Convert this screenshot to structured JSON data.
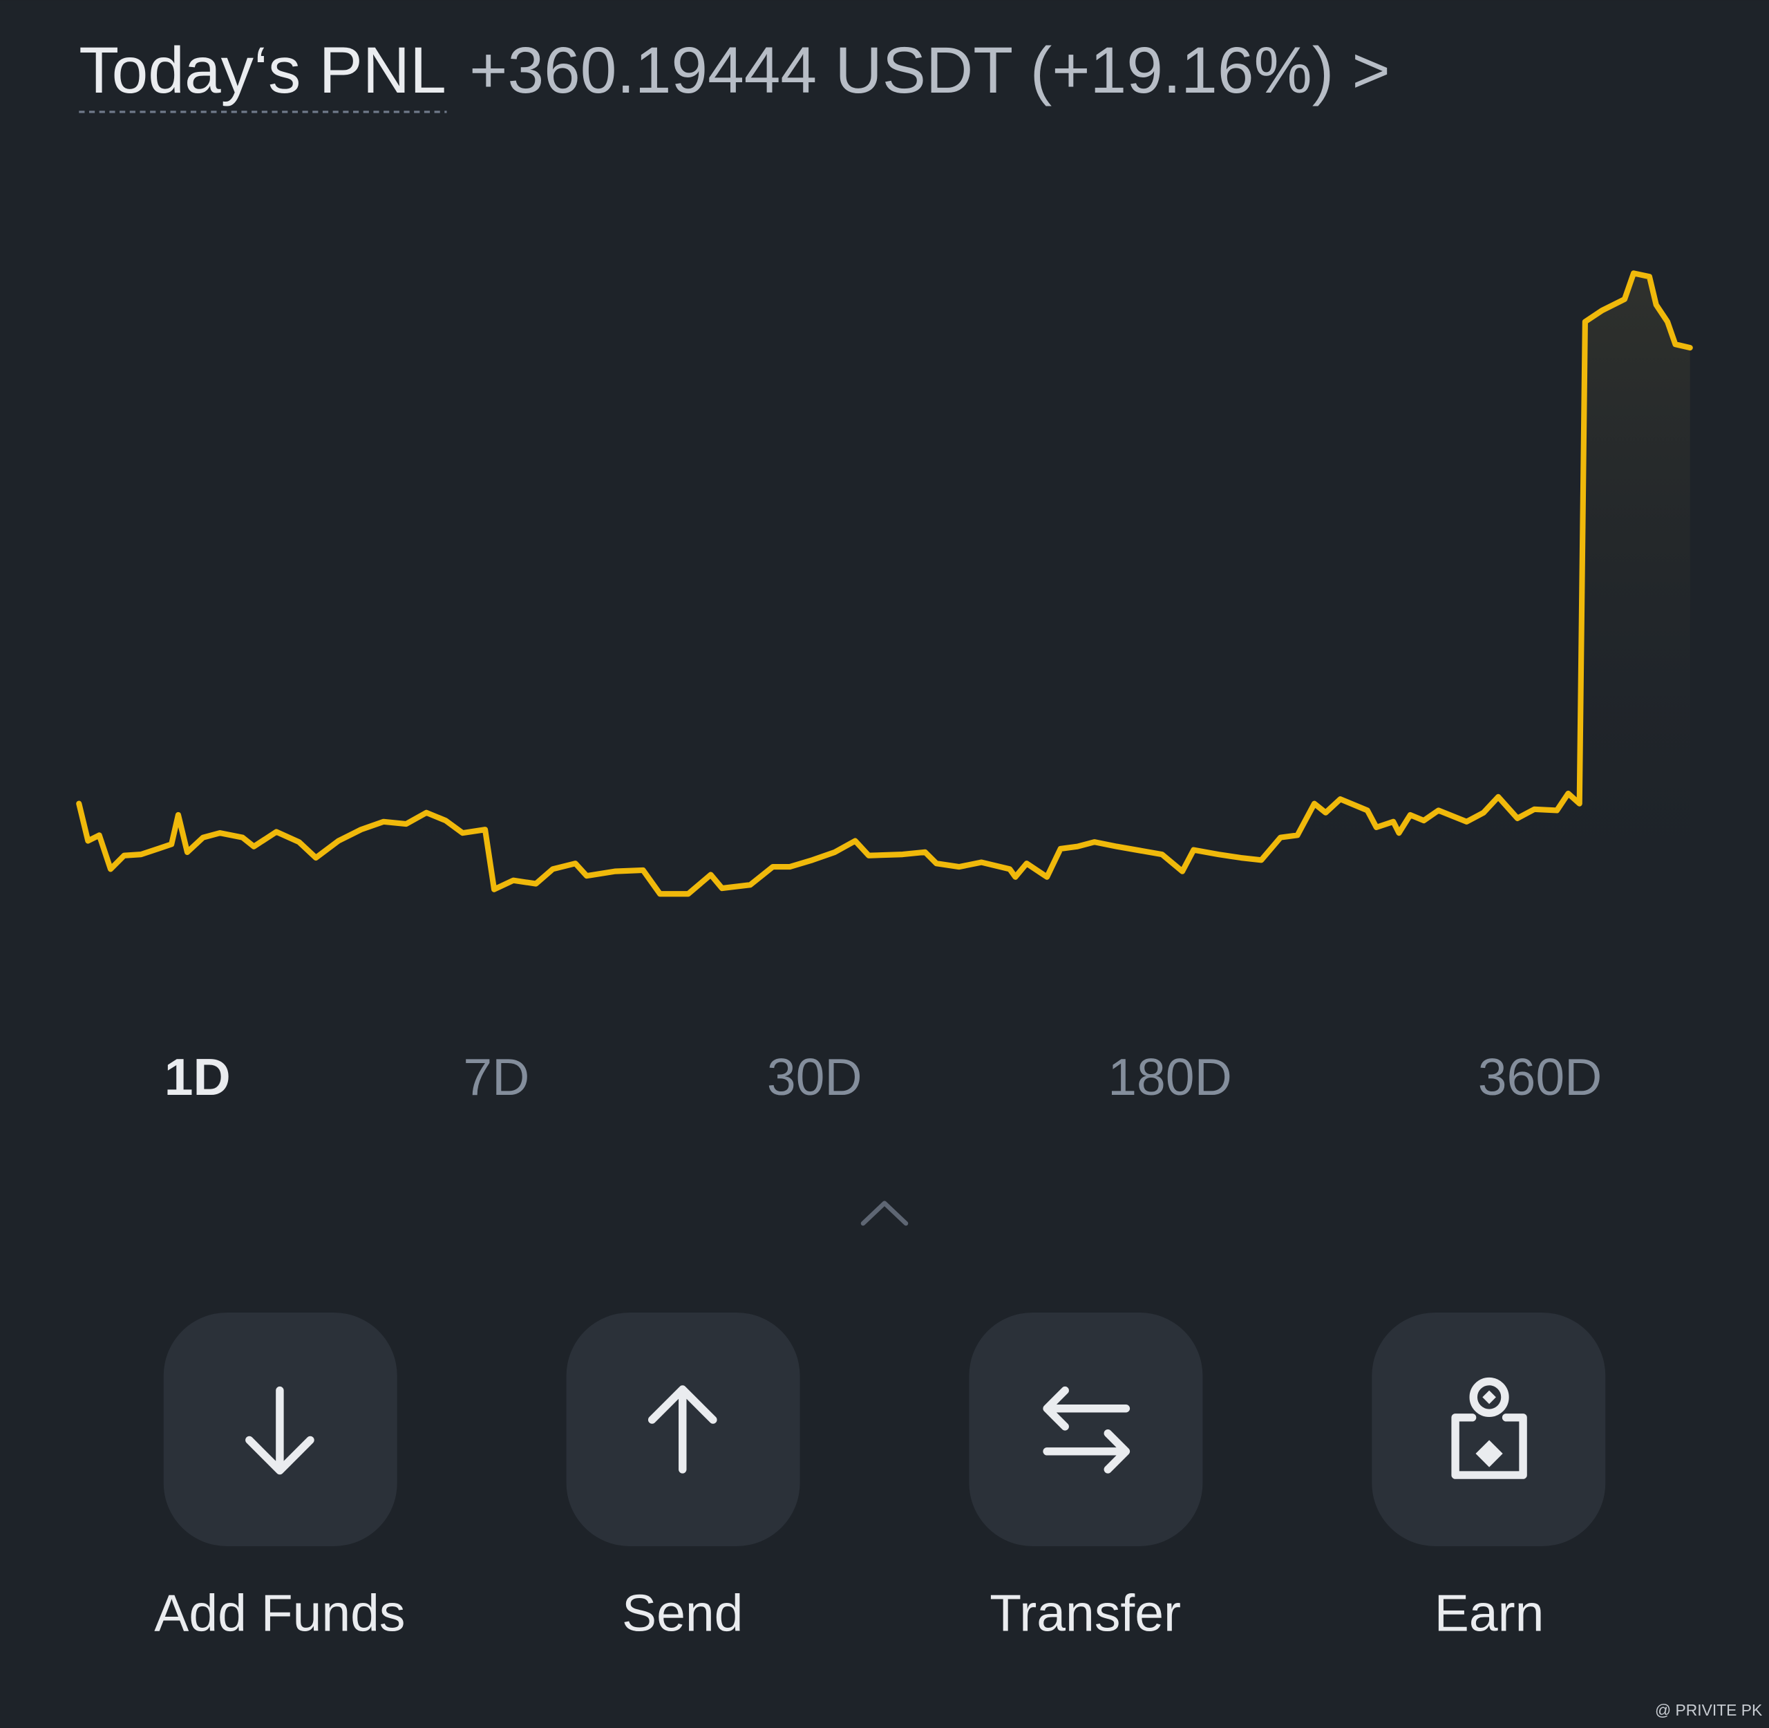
{
  "header": {
    "label": "Today‘s PNL",
    "value": "+360.19444 USDT (+19.16%) >"
  },
  "chart_data": {
    "type": "line",
    "color": "#f0b90b",
    "x": [
      0,
      8,
      18,
      28,
      40,
      55,
      70,
      82,
      88,
      96,
      110,
      125,
      145,
      155,
      175,
      195,
      210,
      230,
      250,
      270,
      290,
      308,
      325,
      340,
      360,
      368,
      385,
      405,
      420,
      440,
      450,
      475,
      500,
      515,
      540,
      560,
      570,
      595,
      615,
      630,
      650,
      670,
      688,
      700,
      730,
      750,
      760,
      780,
      800,
      825,
      830,
      840,
      858,
      870,
      885,
      900,
      920,
      960,
      978,
      988,
      1010,
      1030,
      1048,
      1065,
      1080,
      1095,
      1105,
      1118,
      1142,
      1150,
      1165,
      1170,
      1180,
      1192,
      1205,
      1230,
      1245,
      1258,
      1275,
      1290,
      1310,
      1320,
      1330,
      1335,
      1350,
      1370,
      1378,
      1392,
      1398,
      1408,
      1415,
      1428
    ],
    "values": [
      108,
      75,
      80,
      50,
      62,
      63,
      68,
      72,
      98,
      65,
      78,
      82,
      78,
      70,
      83,
      74,
      60,
      75,
      85,
      92,
      90,
      100,
      93,
      82,
      85,
      32,
      40,
      37,
      50,
      55,
      44,
      48,
      49,
      28,
      28,
      45,
      33,
      36,
      52,
      52,
      58,
      65,
      75,
      62,
      63,
      65,
      55,
      52,
      56,
      50,
      43,
      55,
      43,
      68,
      70,
      74,
      70,
      63,
      48,
      67,
      63,
      60,
      58,
      78,
      80,
      108,
      100,
      112,
      102,
      87,
      92,
      82,
      98,
      93,
      102,
      92,
      100,
      114,
      95,
      103,
      102,
      117,
      108,
      535,
      545,
      555,
      578,
      575,
      550,
      535,
      515,
      512
    ],
    "xlim": [
      0,
      1428
    ],
    "ylim": [
      0,
      580
    ]
  },
  "periods": [
    "1D",
    "7D",
    "30D",
    "180D",
    "360D"
  ],
  "actions": [
    "Add Funds",
    "Send",
    "Transfer",
    "Earn"
  ],
  "watermark": "@ PRIVITE PK"
}
